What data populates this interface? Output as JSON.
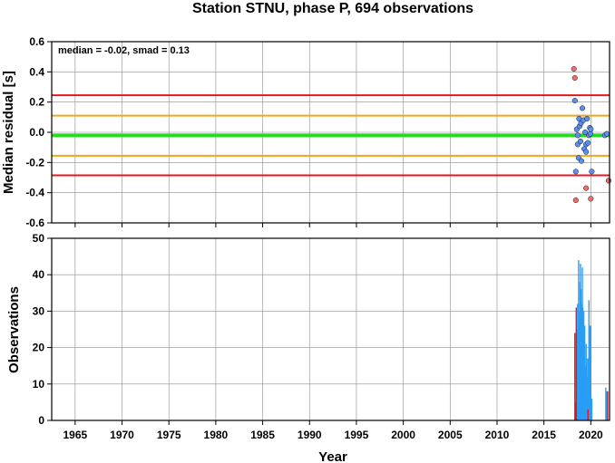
{
  "title": "Station STNU, phase P, 694 observations",
  "chart_data": [
    {
      "type": "scatter",
      "ylabel": "Median residual [s]",
      "xlim": [
        1962.5,
        2022.0
      ],
      "ylim": [
        -0.6,
        0.6
      ],
      "yticks": [
        -0.6,
        -0.4,
        -0.2,
        0.0,
        0.2,
        0.4,
        0.6
      ],
      "ytick_labels": [
        "-0.6",
        "-0.4",
        "-0.2",
        "0.0",
        "0.2",
        "0.4",
        "0.6"
      ],
      "grid": true,
      "annotation": "median = -0.02, smad = 0.13",
      "reference_lines": [
        {
          "y": 0.245,
          "color": "#e8161c"
        },
        {
          "y": 0.11,
          "color": "#f5a31c"
        },
        {
          "y": -0.02,
          "color": "#22dd22"
        },
        {
          "y": -0.155,
          "color": "#f5a31c"
        },
        {
          "y": -0.285,
          "color": "#e8161c"
        }
      ],
      "series": [
        {
          "color": "#5b8ff0",
          "points": [
            [
              2018.3,
              0.21
            ],
            [
              2018.5,
              0.02
            ],
            [
              2018.6,
              -0.02
            ],
            [
              2018.6,
              -0.08
            ],
            [
              2018.7,
              -0.17
            ],
            [
              2018.75,
              0.09
            ],
            [
              2018.8,
              0.04
            ],
            [
              2018.9,
              -0.06
            ],
            [
              2018.95,
              0.06
            ],
            [
              2019.0,
              -0.19
            ],
            [
              2019.1,
              0.16
            ],
            [
              2019.2,
              0.08
            ],
            [
              2019.3,
              -0.11
            ],
            [
              2019.4,
              0.0
            ],
            [
              2019.5,
              -0.08
            ],
            [
              2019.5,
              -0.13
            ],
            [
              2019.6,
              0.09
            ],
            [
              2019.7,
              -0.07
            ],
            [
              2019.8,
              -0.02
            ],
            [
              2019.9,
              0.03
            ],
            [
              2019.95,
              -0.01
            ],
            [
              2020.0,
              0.02
            ],
            [
              2020.1,
              -0.26
            ],
            [
              2021.5,
              -0.02
            ],
            [
              2021.7,
              -0.01
            ],
            [
              2018.4,
              -0.26
            ]
          ]
        },
        {
          "color": "#f26b6b",
          "points": [
            [
              2018.2,
              0.42
            ],
            [
              2018.3,
              0.36
            ],
            [
              2018.4,
              -0.45
            ],
            [
              2019.5,
              -0.37
            ],
            [
              2020.0,
              -0.44
            ],
            [
              2021.9,
              -0.32
            ]
          ]
        }
      ]
    },
    {
      "type": "bar",
      "xlabel": "Year",
      "ylabel": "Observations",
      "xlim": [
        1962.5,
        2022.0
      ],
      "ylim": [
        0,
        50
      ],
      "xticks": [
        1965,
        1970,
        1975,
        1980,
        1985,
        1990,
        1995,
        2000,
        2005,
        2010,
        2015,
        2020
      ],
      "xtick_labels": [
        "1965",
        "1970",
        "1975",
        "1980",
        "1985",
        "1990",
        "1995",
        "2000",
        "2005",
        "2010",
        "2015",
        "2020"
      ],
      "yticks": [
        0,
        10,
        20,
        30,
        40,
        50
      ],
      "ytick_labels": [
        "0",
        "10",
        "20",
        "30",
        "40",
        "50"
      ],
      "grid": true,
      "series": [
        {
          "color": "#2a9df4",
          "bars": [
            [
              2018.5,
              25
            ],
            [
              2018.6,
              32
            ],
            [
              2018.7,
              44
            ],
            [
              2018.8,
              30
            ],
            [
              2018.85,
              38
            ],
            [
              2018.9,
              43
            ],
            [
              2018.95,
              36
            ],
            [
              2019.0,
              20
            ],
            [
              2019.05,
              32
            ],
            [
              2019.1,
              42
            ],
            [
              2019.15,
              31
            ],
            [
              2019.2,
              25
            ],
            [
              2019.25,
              30
            ],
            [
              2019.3,
              18
            ],
            [
              2019.35,
              26
            ],
            [
              2019.4,
              10
            ],
            [
              2019.45,
              15
            ],
            [
              2019.5,
              21
            ],
            [
              2019.55,
              17
            ],
            [
              2019.6,
              12
            ],
            [
              2019.65,
              5
            ],
            [
              2019.7,
              17
            ],
            [
              2019.75,
              8
            ],
            [
              2019.8,
              33
            ],
            [
              2019.85,
              26
            ],
            [
              2019.9,
              12
            ],
            [
              2019.95,
              26
            ],
            [
              2020.0,
              26
            ],
            [
              2020.1,
              6
            ],
            [
              2021.6,
              9
            ],
            [
              2021.7,
              8
            ]
          ]
        },
        {
          "color": "#e8161c",
          "bars": [
            [
              2018.3,
              24
            ],
            [
              2018.4,
              5
            ],
            [
              2018.45,
              31
            ],
            [
              2019.7,
              3
            ],
            [
              2021.8,
              8
            ]
          ]
        }
      ]
    }
  ]
}
